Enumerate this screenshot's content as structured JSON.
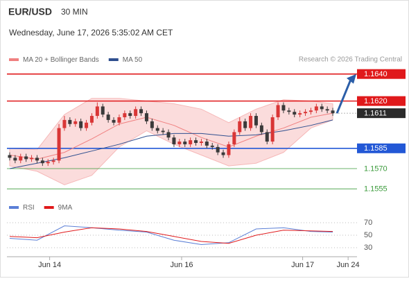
{
  "header": {
    "symbol": "EUR/USD",
    "interval": "30 MIN",
    "datetime": "Wednesday, June 17, 2026 5:35:02 AM CET",
    "source": "Research © 2026 Trading Central"
  },
  "chart_data": [
    {
      "type": "candlestick",
      "up_color": "#d93636",
      "down_color": "#3a3a3a",
      "open": [
        1.158,
        1.1578,
        1.1576,
        1.1579,
        1.1577,
        1.1578,
        1.1576,
        1.1574,
        1.1575,
        1.1576,
        1.16,
        1.1606,
        1.1603,
        1.1605,
        1.16,
        1.1604,
        1.1609,
        1.1616,
        1.161,
        1.1606,
        1.1604,
        1.1608,
        1.1611,
        1.1609,
        1.1614,
        1.1611,
        1.1605,
        1.16,
        1.1598,
        1.1597,
        1.1593,
        1.1588,
        1.159,
        1.1588,
        1.1591,
        1.1589,
        1.159,
        1.1587,
        1.1586,
        1.1582,
        1.158,
        1.1588,
        1.1597,
        1.1605,
        1.16,
        1.1609,
        1.1602,
        1.1597,
        1.159,
        1.1608,
        1.1617,
        1.1613,
        1.1612,
        1.161,
        1.1611,
        1.1612,
        1.1613,
        1.1616,
        1.1614,
        1.1613
      ],
      "high": [
        1.1582,
        1.158,
        1.1581,
        1.1581,
        1.158,
        1.158,
        1.1578,
        1.1577,
        1.1578,
        1.1603,
        1.1609,
        1.1608,
        1.1607,
        1.1607,
        1.1606,
        1.1611,
        1.1619,
        1.1618,
        1.1612,
        1.1608,
        1.161,
        1.1613,
        1.1613,
        1.1616,
        1.1616,
        1.1613,
        1.1607,
        1.1602,
        1.16,
        1.1599,
        1.1595,
        1.1592,
        1.1592,
        1.1593,
        1.1593,
        1.1592,
        1.1592,
        1.1589,
        1.1588,
        1.1584,
        1.159,
        1.1599,
        1.1608,
        1.1607,
        1.1611,
        1.1611,
        1.1604,
        1.1599,
        1.161,
        1.1619,
        1.1619,
        1.1615,
        1.1614,
        1.1613,
        1.1614,
        1.1615,
        1.1618,
        1.1618,
        1.1616,
        1.1615
      ],
      "low": [
        1.1576,
        1.1574,
        1.1574,
        1.1575,
        1.1575,
        1.1574,
        1.1572,
        1.1572,
        1.1573,
        1.1574,
        1.1598,
        1.1601,
        1.1601,
        1.1598,
        1.1598,
        1.1602,
        1.1607,
        1.1608,
        1.1604,
        1.1602,
        1.1602,
        1.1606,
        1.1607,
        1.1607,
        1.1609,
        1.1603,
        1.1598,
        1.1596,
        1.1595,
        1.1591,
        1.1586,
        1.1586,
        1.1586,
        1.1586,
        1.1587,
        1.1587,
        1.1585,
        1.1584,
        1.158,
        1.1578,
        1.1578,
        1.1586,
        1.1595,
        1.1598,
        1.1598,
        1.16,
        1.1595,
        1.1588,
        1.1588,
        1.1606,
        1.1611,
        1.161,
        1.1608,
        1.1608,
        1.1609,
        1.161,
        1.1611,
        1.1612,
        1.1611,
        1.1609
      ],
      "close": [
        1.1578,
        1.1576,
        1.1579,
        1.1577,
        1.1578,
        1.1576,
        1.1574,
        1.1575,
        1.1576,
        1.16,
        1.1606,
        1.1603,
        1.1605,
        1.16,
        1.1604,
        1.1609,
        1.1616,
        1.161,
        1.1606,
        1.1604,
        1.1608,
        1.1611,
        1.1609,
        1.1614,
        1.1611,
        1.1605,
        1.16,
        1.1598,
        1.1597,
        1.1593,
        1.1588,
        1.159,
        1.1588,
        1.1591,
        1.1589,
        1.159,
        1.1587,
        1.1586,
        1.1582,
        1.158,
        1.1588,
        1.1597,
        1.1605,
        1.16,
        1.1609,
        1.1602,
        1.1597,
        1.159,
        1.1608,
        1.1617,
        1.1613,
        1.1612,
        1.161,
        1.1611,
        1.1612,
        1.1613,
        1.1616,
        1.1614,
        1.1613,
        1.1611
      ],
      "overlay_x": [
        0,
        5,
        10,
        15,
        20,
        25,
        30,
        35,
        40,
        45,
        50,
        55,
        59
      ],
      "series": [
        {
          "name": "MA 20 + Bollinger Bands",
          "color": "#f08080",
          "values": [
            1.158,
            1.1577,
            1.1582,
            1.1592,
            1.1603,
            1.1608,
            1.1602,
            1.1593,
            1.1586,
            1.1594,
            1.16,
            1.1608,
            1.1611
          ]
        },
        {
          "name": "MA 50",
          "color": "#2f4f8f",
          "values": [
            1.157,
            1.1574,
            1.1578,
            1.1583,
            1.1588,
            1.1594,
            1.1596,
            1.1596,
            1.1594,
            1.1595,
            1.1598,
            1.1602,
            1.1606
          ]
        }
      ],
      "band": {
        "color": "#fbdcdc",
        "upper": [
          1.1585,
          1.1584,
          1.161,
          1.1622,
          1.1622,
          1.162,
          1.1618,
          1.1614,
          1.1604,
          1.1614,
          1.1621,
          1.162,
          1.1618
        ],
        "lower": [
          1.1572,
          1.1568,
          1.1558,
          1.1565,
          1.1586,
          1.1598,
          1.1588,
          1.158,
          1.1572,
          1.1574,
          1.1582,
          1.16,
          1.1606
        ]
      },
      "levels": [
        {
          "value": 1.164,
          "label": "1.1640",
          "color": "#e0191b",
          "box": true,
          "line": "solid"
        },
        {
          "value": 1.162,
          "label": "1.1620",
          "color": "#e0191b",
          "box": true,
          "line": "solid"
        },
        {
          "value": 1.1611,
          "label": "1.1611",
          "color": "#2b2b2b",
          "box": true,
          "line": "dotted"
        },
        {
          "value": 1.1585,
          "label": "1.1585",
          "color": "#2358d6",
          "box": true,
          "line": "solid"
        },
        {
          "value": 1.157,
          "label": "1.1570",
          "color": "#3a9a3a",
          "box": false,
          "line": "solid"
        },
        {
          "value": 1.1555,
          "label": "1.1555",
          "color": "#3a9a3a",
          "box": false,
          "line": "solid"
        }
      ],
      "ylim": [
        1.1551,
        1.1646
      ],
      "xticks": [
        {
          "value": 7.3,
          "label": "Jun 14"
        },
        {
          "value": 31.4,
          "label": "Jun 16"
        },
        {
          "value": 53.5,
          "label": "Jun 17"
        },
        {
          "value": 61.8,
          "label": "Jun 24"
        }
      ]
    },
    {
      "type": "line",
      "x": [
        0,
        5,
        10,
        15,
        20,
        25,
        30,
        35,
        40,
        45,
        50,
        55,
        59
      ],
      "series": [
        {
          "name": "RSI",
          "color": "#5b7fd6",
          "values": [
            45,
            42,
            65,
            62,
            58,
            55,
            42,
            35,
            38,
            60,
            62,
            56,
            55
          ]
        },
        {
          "name": "9MA",
          "color": "#e0191b",
          "values": [
            48,
            46,
            55,
            62,
            60,
            56,
            48,
            40,
            37,
            50,
            58,
            57,
            56
          ]
        }
      ],
      "ylim": [
        20,
        80
      ],
      "yticks": [
        70,
        50,
        30
      ]
    }
  ]
}
